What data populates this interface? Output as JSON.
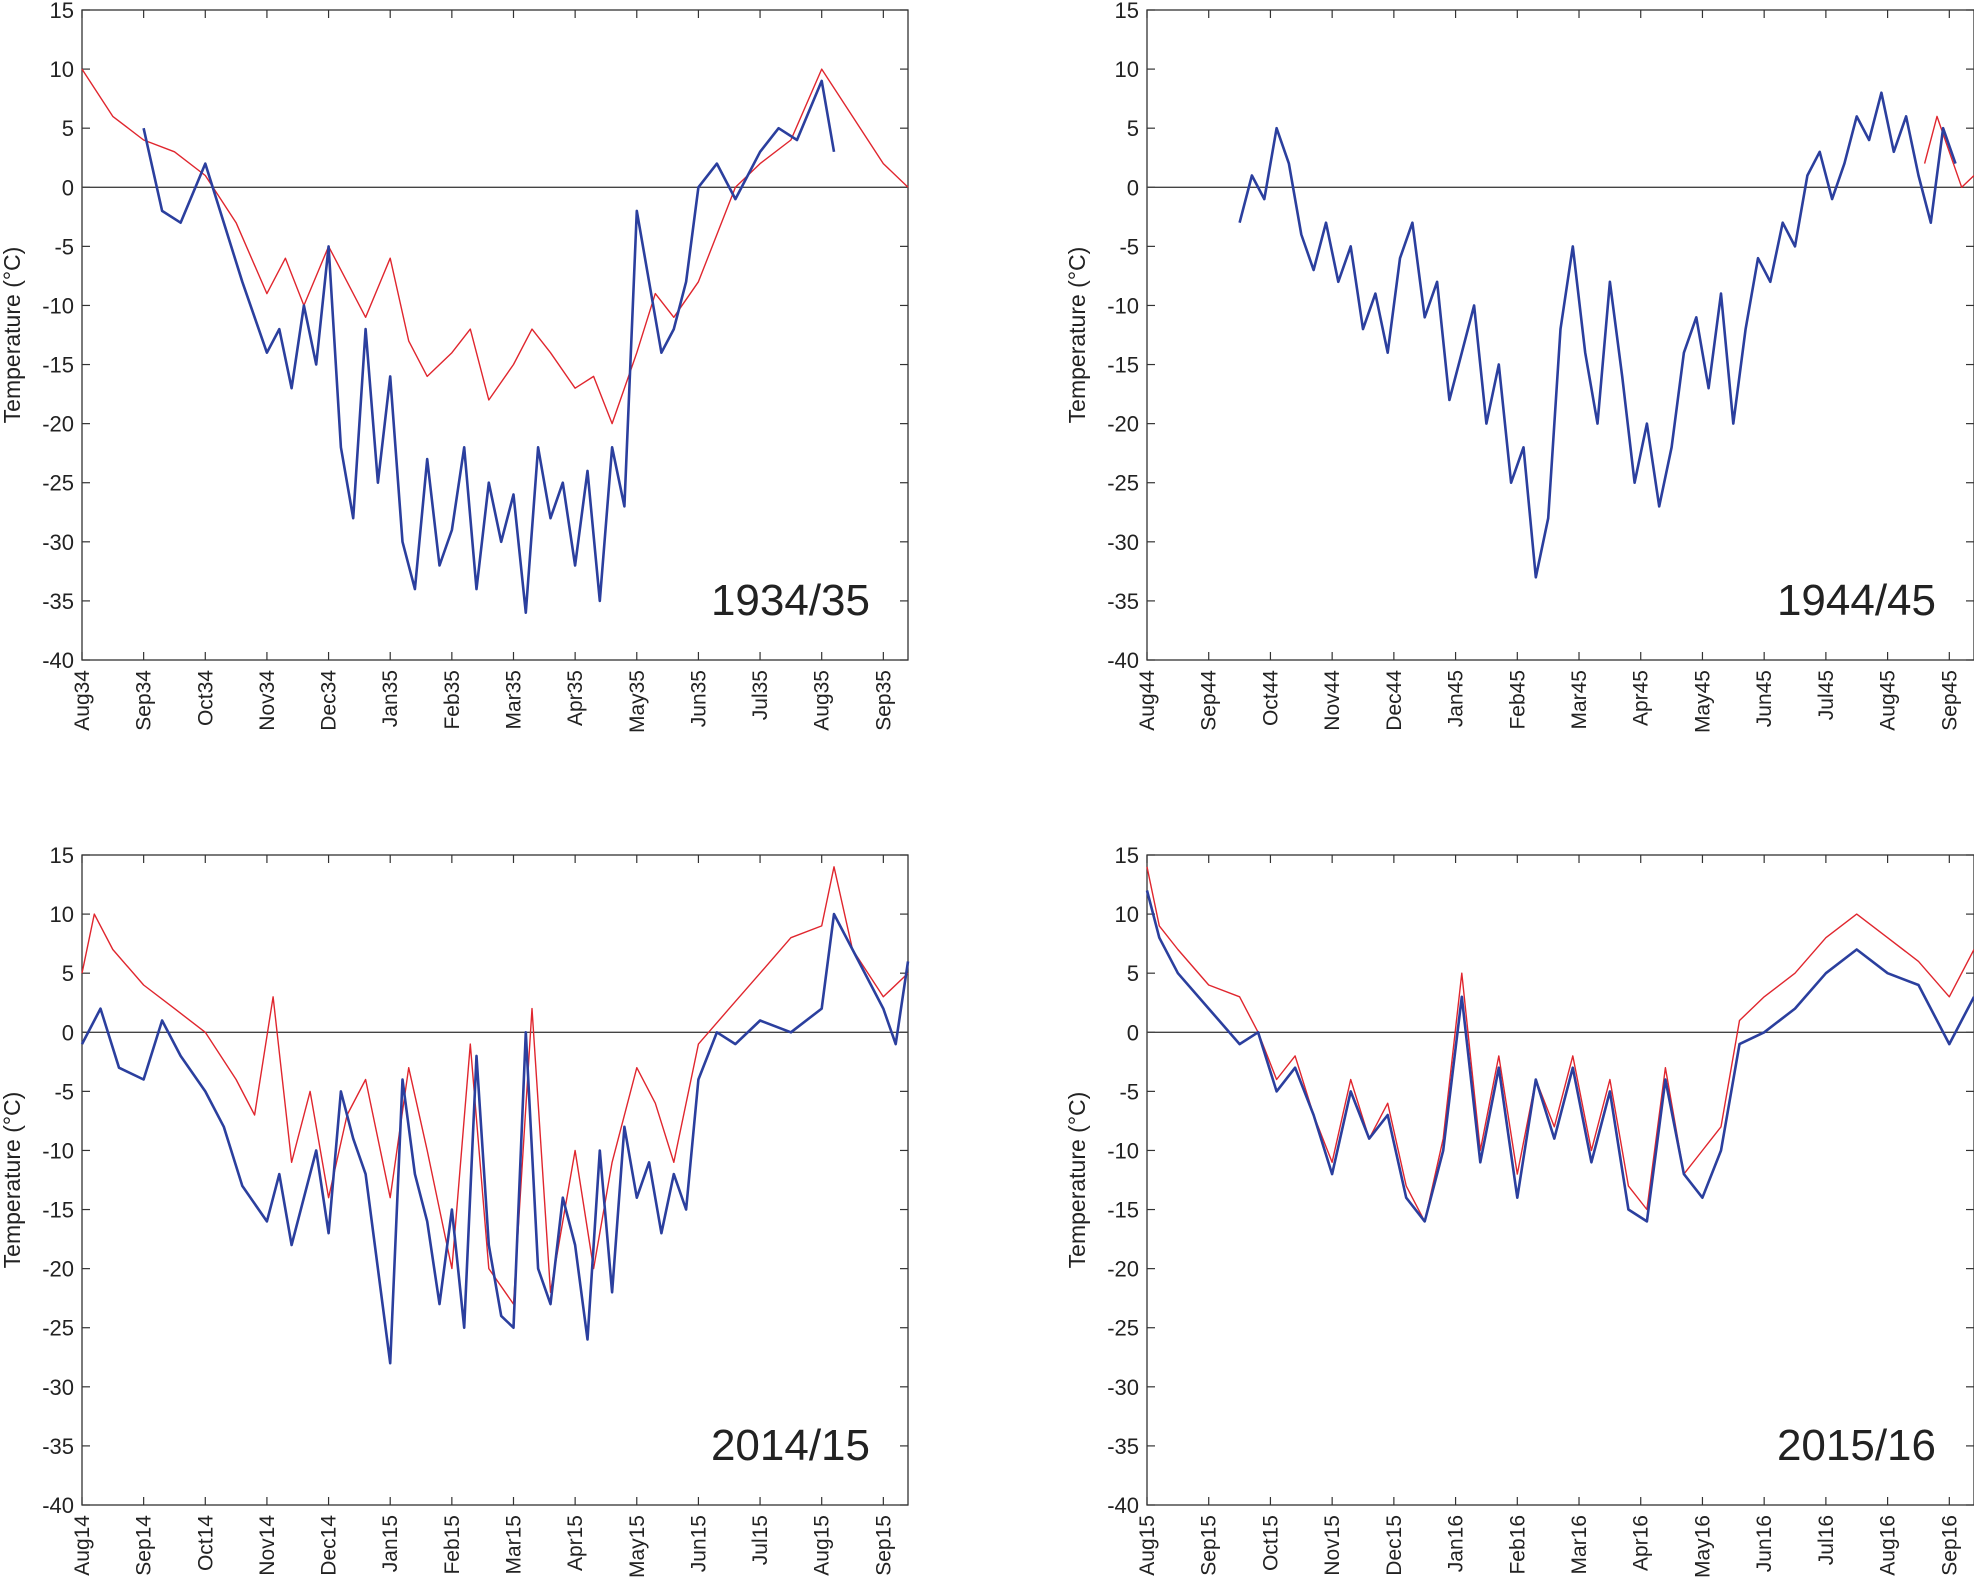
{
  "colors": {
    "blue": "#2b3f9e",
    "red": "#e0262e",
    "axis": "#333333",
    "zero": "#444444"
  },
  "chart_data": [
    {
      "type": "line",
      "title": "",
      "annotation": "1934/35",
      "xlabel": "",
      "ylabel": "Temperature (°C)",
      "ylim": [
        -40,
        15
      ],
      "yticks": [
        "15",
        "10",
        "5",
        "0",
        "-5",
        "-10",
        "-15",
        "-20",
        "-25",
        "-30",
        "-35",
        "-40"
      ],
      "xlim": [
        0,
        13.4
      ],
      "xticks": [
        "Aug34",
        "Sep34",
        "Oct34",
        "Nov34",
        "Dec34",
        "Jan35",
        "Feb35",
        "Mar35",
        "Apr35",
        "May35",
        "Jun35",
        "Jul35",
        "Aug35",
        "Sep35"
      ],
      "reference_line": 0,
      "series": [
        {
          "name": "red",
          "x": [
            0,
            0.5,
            1,
            1.5,
            2,
            2.5,
            3,
            3.3,
            3.6,
            4,
            4.3,
            4.6,
            5,
            5.3,
            5.6,
            6,
            6.3,
            6.6,
            7,
            7.3,
            7.6,
            8,
            8.3,
            8.6,
            9,
            9.3,
            9.6,
            10,
            10.3,
            10.6,
            11,
            11.5,
            12,
            12.5,
            13,
            13.4
          ],
          "y": [
            10,
            6,
            4,
            3,
            1,
            -3,
            -9,
            -6,
            -10,
            -5,
            -8,
            -11,
            -6,
            -13,
            -16,
            -14,
            -12,
            -18,
            -15,
            -12,
            -14,
            -17,
            -16,
            -20,
            -14,
            -9,
            -11,
            -8,
            -4,
            0,
            2,
            4,
            10,
            6,
            2,
            0
          ]
        },
        {
          "name": "blue",
          "x": [
            1,
            1.3,
            1.6,
            2,
            2.3,
            2.6,
            3,
            3.2,
            3.4,
            3.6,
            3.8,
            4,
            4.2,
            4.4,
            4.6,
            4.8,
            5,
            5.2,
            5.4,
            5.6,
            5.8,
            6,
            6.2,
            6.4,
            6.6,
            6.8,
            7,
            7.2,
            7.4,
            7.6,
            7.8,
            8,
            8.2,
            8.4,
            8.6,
            8.8,
            9,
            9.2,
            9.4,
            9.6,
            9.8,
            10,
            10.3,
            10.6,
            11,
            11.3,
            11.6,
            12,
            12.2
          ],
          "y": [
            5,
            -2,
            -3,
            2,
            -3,
            -8,
            -14,
            -12,
            -17,
            -10,
            -15,
            -5,
            -22,
            -28,
            -12,
            -25,
            -16,
            -30,
            -34,
            -23,
            -32,
            -29,
            -22,
            -34,
            -25,
            -30,
            -26,
            -36,
            -22,
            -28,
            -25,
            -32,
            -24,
            -35,
            -22,
            -27,
            -2,
            -8,
            -14,
            -12,
            -8,
            0,
            2,
            -1,
            3,
            5,
            4,
            9,
            3
          ]
        }
      ]
    },
    {
      "type": "line",
      "title": "",
      "annotation": "1944/45",
      "xlabel": "",
      "ylabel": "Temperature (°C)",
      "ylim": [
        -40,
        15
      ],
      "yticks": [
        "15",
        "10",
        "5",
        "0",
        "-5",
        "-10",
        "-15",
        "-20",
        "-25",
        "-30",
        "-35",
        "-40"
      ],
      "xlim": [
        0,
        13.4
      ],
      "xticks": [
        "Aug44",
        "Sep44",
        "Oct44",
        "Nov44",
        "Dec44",
        "Jan45",
        "Feb45",
        "Mar45",
        "Apr45",
        "May45",
        "Jun45",
        "Jul45",
        "Aug45",
        "Sep45"
      ],
      "reference_line": 0,
      "series": [
        {
          "name": "red",
          "x": [
            12.6,
            12.8,
            13,
            13.2,
            13.4
          ],
          "y": [
            2,
            6,
            3,
            0,
            1
          ]
        },
        {
          "name": "blue",
          "x": [
            1.5,
            1.7,
            1.9,
            2.1,
            2.3,
            2.5,
            2.7,
            2.9,
            3.1,
            3.3,
            3.5,
            3.7,
            3.9,
            4.1,
            4.3,
            4.5,
            4.7,
            4.9,
            5.1,
            5.3,
            5.5,
            5.7,
            5.9,
            6.1,
            6.3,
            6.5,
            6.7,
            6.9,
            7.1,
            7.3,
            7.5,
            7.7,
            7.9,
            8.1,
            8.3,
            8.5,
            8.7,
            8.9,
            9.1,
            9.3,
            9.5,
            9.7,
            9.9,
            10.1,
            10.3,
            10.5,
            10.7,
            10.9,
            11.1,
            11.3,
            11.5,
            11.7,
            11.9,
            12.1,
            12.3,
            12.5,
            12.7,
            12.9,
            13.1
          ],
          "y": [
            -3,
            1,
            -1,
            5,
            2,
            -4,
            -7,
            -3,
            -8,
            -5,
            -12,
            -9,
            -14,
            -6,
            -3,
            -11,
            -8,
            -18,
            -14,
            -10,
            -20,
            -15,
            -25,
            -22,
            -33,
            -28,
            -12,
            -5,
            -14,
            -20,
            -8,
            -16,
            -25,
            -20,
            -27,
            -22,
            -14,
            -11,
            -17,
            -9,
            -20,
            -12,
            -6,
            -8,
            -3,
            -5,
            1,
            3,
            -1,
            2,
            6,
            4,
            8,
            3,
            6,
            1,
            -3,
            5,
            2
          ]
        }
      ]
    },
    {
      "type": "line",
      "title": "",
      "annotation": "2014/15",
      "xlabel": "",
      "ylabel": "Temperature (°C)",
      "ylim": [
        -40,
        15
      ],
      "yticks": [
        "15",
        "10",
        "5",
        "0",
        "-5",
        "-10",
        "-15",
        "-20",
        "-25",
        "-30",
        "-35",
        "-40"
      ],
      "xlim": [
        0,
        13.4
      ],
      "xticks": [
        "Aug14",
        "Sep14",
        "Oct14",
        "Nov14",
        "Dec14",
        "Jan15",
        "Feb15",
        "Mar15",
        "Apr15",
        "May15",
        "Jun15",
        "Jul15",
        "Aug15",
        "Sep15"
      ],
      "reference_line": 0,
      "series": [
        {
          "name": "red",
          "x": [
            0,
            0.2,
            0.5,
            1,
            1.5,
            2,
            2.5,
            2.8,
            3.1,
            3.4,
            3.7,
            4,
            4.3,
            4.6,
            5,
            5.3,
            5.6,
            6,
            6.3,
            6.6,
            7,
            7.3,
            7.6,
            8,
            8.3,
            8.6,
            9,
            9.3,
            9.6,
            10,
            10.5,
            11,
            11.5,
            12,
            12.2,
            12.5,
            13,
            13.4
          ],
          "y": [
            5,
            10,
            7,
            4,
            2,
            0,
            -4,
            -7,
            3,
            -11,
            -5,
            -14,
            -7,
            -4,
            -14,
            -3,
            -10,
            -20,
            -1,
            -20,
            -23,
            2,
            -22,
            -10,
            -20,
            -11,
            -3,
            -6,
            -11,
            -1,
            2,
            5,
            8,
            9,
            14,
            7,
            3,
            5
          ]
        },
        {
          "name": "blue",
          "x": [
            0,
            0.3,
            0.6,
            1,
            1.3,
            1.6,
            2,
            2.3,
            2.6,
            3,
            3.2,
            3.4,
            3.6,
            3.8,
            4,
            4.2,
            4.4,
            4.6,
            4.8,
            5,
            5.2,
            5.4,
            5.6,
            5.8,
            6,
            6.2,
            6.4,
            6.6,
            6.8,
            7,
            7.2,
            7.4,
            7.6,
            7.8,
            8,
            8.2,
            8.4,
            8.6,
            8.8,
            9,
            9.2,
            9.4,
            9.6,
            9.8,
            10,
            10.3,
            10.6,
            11,
            11.5,
            12,
            12.2,
            12.5,
            13,
            13.2,
            13.4
          ],
          "y": [
            -1,
            2,
            -3,
            -4,
            1,
            -2,
            -5,
            -8,
            -13,
            -16,
            -12,
            -18,
            -14,
            -10,
            -17,
            -5,
            -9,
            -12,
            -20,
            -28,
            -4,
            -12,
            -16,
            -23,
            -15,
            -25,
            -2,
            -18,
            -24,
            -25,
            0,
            -20,
            -23,
            -14,
            -18,
            -26,
            -10,
            -22,
            -8,
            -14,
            -11,
            -17,
            -12,
            -15,
            -4,
            0,
            -1,
            1,
            0,
            2,
            10,
            7,
            2,
            -1,
            6
          ]
        }
      ]
    },
    {
      "type": "line",
      "title": "",
      "annotation": "2015/16",
      "xlabel": "",
      "ylabel": "Temperature (°C)",
      "ylim": [
        -40,
        15
      ],
      "yticks": [
        "15",
        "10",
        "5",
        "0",
        "-5",
        "-10",
        "-15",
        "-20",
        "-25",
        "-30",
        "-35",
        "-40"
      ],
      "xlim": [
        0,
        13.4
      ],
      "xticks": [
        "Aug15",
        "Sep15",
        "Oct15",
        "Nov15",
        "Dec15",
        "Jan16",
        "Feb16",
        "Mar16",
        "Apr16",
        "May16",
        "Jun16",
        "Jul16",
        "Aug16",
        "Sep16"
      ],
      "reference_line": 0,
      "series": [
        {
          "name": "red",
          "x": [
            0,
            0.2,
            0.5,
            1,
            1.5,
            1.8,
            2.1,
            2.4,
            2.7,
            3,
            3.3,
            3.6,
            3.9,
            4.2,
            4.5,
            4.8,
            5.1,
            5.4,
            5.7,
            6,
            6.3,
            6.6,
            6.9,
            7.2,
            7.5,
            7.8,
            8.1,
            8.4,
            8.7,
            9,
            9.3,
            9.6,
            10,
            10.5,
            11,
            11.5,
            12,
            12.5,
            13,
            13.4
          ],
          "y": [
            14,
            9,
            7,
            4,
            3,
            0,
            -4,
            -2,
            -7,
            -11,
            -4,
            -9,
            -6,
            -13,
            -16,
            -9,
            5,
            -10,
            -2,
            -12,
            -4,
            -8,
            -2,
            -10,
            -4,
            -13,
            -15,
            -3,
            -12,
            -10,
            -8,
            1,
            3,
            5,
            8,
            10,
            8,
            6,
            3,
            7
          ]
        },
        {
          "name": "blue",
          "x": [
            0,
            0.2,
            0.5,
            1,
            1.5,
            1.8,
            2.1,
            2.4,
            2.7,
            3,
            3.3,
            3.6,
            3.9,
            4.2,
            4.5,
            4.8,
            5.1,
            5.4,
            5.7,
            6,
            6.3,
            6.6,
            6.9,
            7.2,
            7.5,
            7.8,
            8.1,
            8.4,
            8.7,
            9,
            9.3,
            9.6,
            10,
            10.5,
            11,
            11.5,
            12,
            12.5,
            13,
            13.4
          ],
          "y": [
            12,
            8,
            5,
            2,
            -1,
            0,
            -5,
            -3,
            -7,
            -12,
            -5,
            -9,
            -7,
            -14,
            -16,
            -10,
            3,
            -11,
            -3,
            -14,
            -4,
            -9,
            -3,
            -11,
            -5,
            -15,
            -16,
            -4,
            -12,
            -14,
            -10,
            -1,
            0,
            2,
            5,
            7,
            5,
            4,
            -1,
            3
          ]
        }
      ]
    }
  ]
}
